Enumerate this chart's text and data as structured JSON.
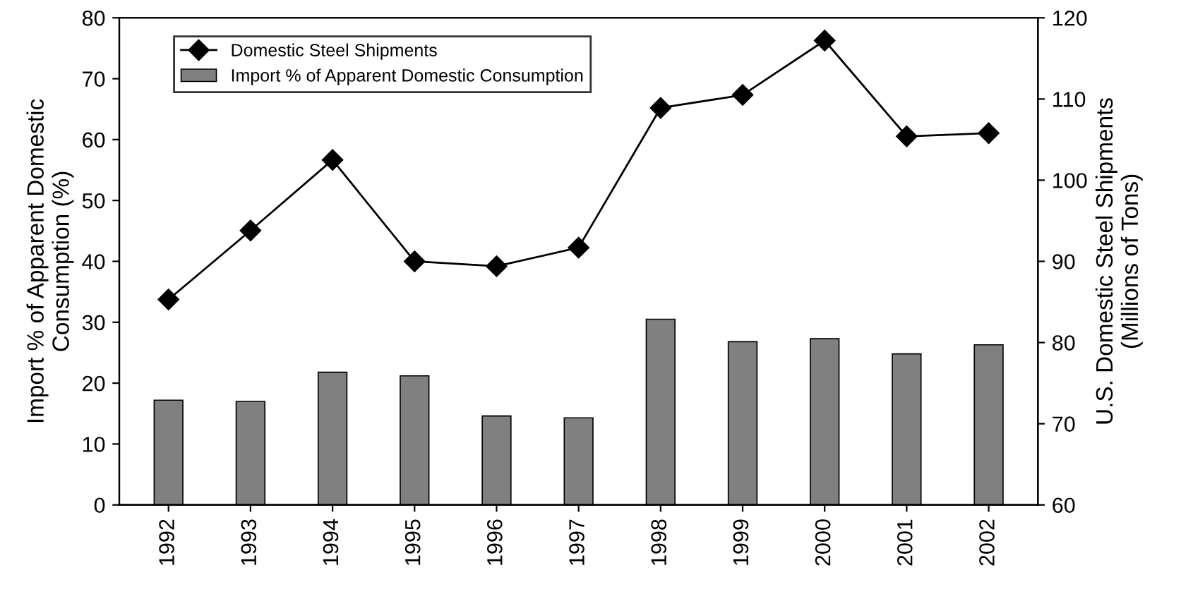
{
  "chart_data": {
    "type": "bar",
    "categories": [
      "1992",
      "1993",
      "1994",
      "1995",
      "1996",
      "1997",
      "1998",
      "1999",
      "2000",
      "2001",
      "2002"
    ],
    "ylabel": "Import % of Apparent Domestic\nConsumption (%)",
    "y2label": "U.S. Domestic Steel Shipments\n(Millions of Tons)",
    "ylim": [
      0,
      80
    ],
    "yticks": [
      0,
      10,
      20,
      30,
      40,
      50,
      60,
      70,
      80
    ],
    "y2lim": [
      60,
      120
    ],
    "y2ticks": [
      60,
      70,
      80,
      90,
      100,
      110,
      120
    ],
    "legend": "top left",
    "grid": false,
    "series": [
      {
        "name": "Domestic Steel Shipments",
        "type": "line",
        "axis": "y2",
        "color": "#000000",
        "marker": "diamond",
        "line_style": "solid",
        "values": [
          85.3,
          93.8,
          102.5,
          90.0,
          89.4,
          91.7,
          108.9,
          110.5,
          117.2,
          105.4,
          105.8
        ]
      },
      {
        "name": "Import % of Apparent Domestic Consumption",
        "color": "#808080",
        "values": [
          17.2,
          17.0,
          21.8,
          21.2,
          14.6,
          14.3,
          30.5,
          26.8,
          27.3,
          24.8,
          26.3
        ]
      }
    ]
  }
}
